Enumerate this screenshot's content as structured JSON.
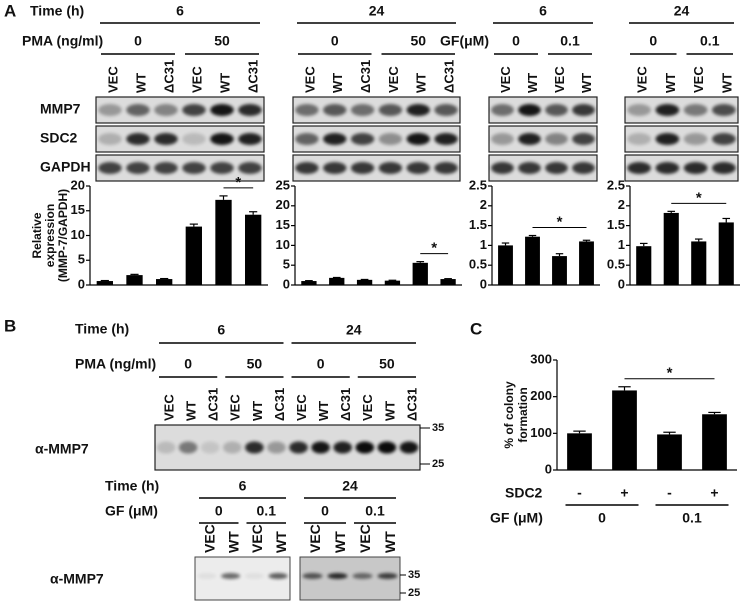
{
  "panel_a": {
    "label": "A",
    "time_label": "Time (h)",
    "pma_label": "PMA (ng/ml)",
    "gf_label": "GF(μM)",
    "groups": [
      {
        "time": "6",
        "doses": [
          "0",
          "50"
        ],
        "lanes": [
          "VEC",
          "WT",
          "ΔC31",
          "VEC",
          "WT",
          "ΔC31"
        ]
      },
      {
        "time": "24",
        "doses": [
          "0",
          "50"
        ],
        "lanes": [
          "VEC",
          "WT",
          "ΔC31",
          "VEC",
          "WT",
          "ΔC31"
        ]
      },
      {
        "time": "6",
        "doses": [
          "0",
          "0.1"
        ],
        "lanes": [
          "VEC",
          "WT",
          "VEC",
          "WT"
        ]
      },
      {
        "time": "24",
        "doses": [
          "0",
          "0.1"
        ],
        "lanes": [
          "VEC",
          "WT",
          "VEC",
          "WT"
        ]
      }
    ],
    "rows": [
      "MMP7",
      "SDC2",
      "GAPDH"
    ]
  },
  "panel_b": {
    "label": "B",
    "time_label": "Time (h)",
    "pma_label": "PMA (ng/ml)",
    "times": [
      "6",
      "24"
    ],
    "doses": [
      "0",
      "50",
      "0",
      "50"
    ],
    "lanes": [
      "VEC",
      "WT",
      "ΔC31",
      "VEC",
      "WT",
      "ΔC31",
      "VEC",
      "WT",
      "ΔC31",
      "VEC",
      "WT",
      "ΔC31"
    ],
    "blot_label": "α-MMP7",
    "markers": [
      "35",
      "25"
    ],
    "lower": {
      "time_label": "Time (h)",
      "gf_label": "GF (μM)",
      "times": [
        "6",
        "24"
      ],
      "doses": [
        "0",
        "0.1",
        "0",
        "0.1"
      ],
      "lanes": [
        "VEC",
        "WT",
        "VEC",
        "WT",
        "VEC",
        "WT",
        "VEC",
        "WT"
      ],
      "blot_label": "α-MMP7",
      "markers": [
        "35",
        "25"
      ]
    }
  },
  "panel_c": {
    "label": "C",
    "sdc2_label": "SDC2",
    "sdc2": [
      "-",
      "+",
      "-",
      "+"
    ],
    "gf_label": "GF (μM)",
    "gf": [
      "0",
      "0.1"
    ]
  },
  "chart_data": [
    {
      "type": "bar",
      "y_label": [
        "Relative",
        "expression",
        "(MMP-7/GAPDH)"
      ],
      "values": [
        0.8,
        2.0,
        1.2,
        11.8,
        17.2,
        14.2
      ],
      "errors": [
        0.1,
        0.15,
        0.1,
        0.5,
        0.8,
        0.6
      ],
      "annotation": "*",
      "color": "#000000",
      "ylim": [
        0,
        20
      ],
      "yticks": [
        0,
        5,
        10,
        15,
        20
      ]
    },
    {
      "type": "bar",
      "values": [
        1.0,
        1.8,
        1.3,
        1.1,
        5.6,
        1.5
      ],
      "errors": [
        0.1,
        0.1,
        0.1,
        0.1,
        0.3,
        0.1
      ],
      "annotation": "*",
      "color": "#000000",
      "ylim": [
        0,
        25
      ],
      "yticks": [
        0,
        5,
        10,
        15,
        20,
        25
      ]
    },
    {
      "type": "bar",
      "values": [
        1.0,
        1.22,
        0.73,
        1.1
      ],
      "errors": [
        0.06,
        0.03,
        0.06,
        0.03
      ],
      "annotation": "*",
      "color": "#000000",
      "ylim": [
        0,
        2.5
      ],
      "yticks": [
        0,
        0.5,
        1,
        1.5,
        2,
        2.5
      ]
    },
    {
      "type": "bar",
      "values": [
        0.98,
        1.82,
        1.1,
        1.58
      ],
      "errors": [
        0.07,
        0.04,
        0.06,
        0.1
      ],
      "annotation": "*",
      "color": "#000000",
      "ylim": [
        0,
        2.5
      ],
      "yticks": [
        0,
        0.5,
        1,
        1.5,
        2,
        2.5
      ]
    },
    {
      "type": "bar",
      "y_label": [
        "% of colony",
        "formation"
      ],
      "values": [
        100,
        217,
        97,
        152
      ],
      "errors": [
        6,
        10,
        6,
        5
      ],
      "annotation": "*",
      "color": "#000000",
      "ylim": [
        0,
        300
      ],
      "yticks": [
        0,
        100,
        200,
        300
      ]
    }
  ]
}
